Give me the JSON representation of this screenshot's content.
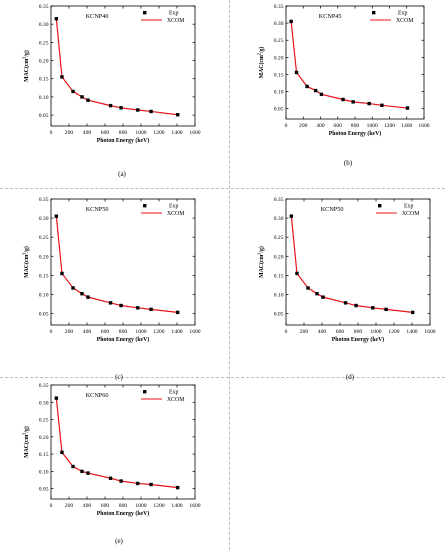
{
  "common": {
    "xlabel": "Photon Energy (keV)",
    "ylabel_parts": [
      "MAC(cm",
      "2",
      "/g)"
    ],
    "xlim": [
      0,
      1600
    ],
    "ylim": [
      0.02,
      0.35
    ],
    "xticks": [
      "0",
      "200",
      "400",
      "600",
      "800",
      "1000",
      "1200",
      "1400",
      "1600"
    ],
    "yticks": [
      "0.05",
      "0.10",
      "0.15",
      "0.20",
      "0.25",
      "0.30",
      "0.35"
    ],
    "legend": {
      "exp": "Exp",
      "xcom": "XCOM"
    },
    "colors": {
      "exp": "#000000",
      "xcom": "#e8141a"
    }
  },
  "chart_data": [
    {
      "panel": "(a)",
      "type": "scatter",
      "title": "KCNP40",
      "x": [
        59.5,
        121.8,
        244.7,
        344.3,
        411.1,
        661.7,
        778.9,
        964.1,
        1112.1,
        1408.0
      ],
      "exp": [
        0.315,
        0.155,
        0.115,
        0.1,
        0.091,
        0.076,
        0.07,
        0.064,
        0.06,
        0.051
      ],
      "xcom": [
        0.315,
        0.155,
        0.115,
        0.1,
        0.091,
        0.076,
        0.07,
        0.064,
        0.06,
        0.051
      ]
    },
    {
      "panel": "(b)",
      "type": "scatter",
      "title": "KCNP45",
      "x": [
        59.5,
        121.8,
        244.7,
        344.3,
        411.1,
        661.7,
        778.9,
        964.1,
        1112.1,
        1408.0
      ],
      "exp": [
        0.305,
        0.156,
        0.115,
        0.103,
        0.092,
        0.077,
        0.07,
        0.065,
        0.06,
        0.052
      ],
      "xcom": [
        0.305,
        0.156,
        0.115,
        0.103,
        0.092,
        0.077,
        0.07,
        0.065,
        0.06,
        0.052
      ]
    },
    {
      "panel": "(c)",
      "type": "scatter",
      "title": "KCNP50",
      "x": [
        59.5,
        121.8,
        244.7,
        344.3,
        411.1,
        661.7,
        778.9,
        964.1,
        1112.1,
        1408.0
      ],
      "exp": [
        0.305,
        0.155,
        0.117,
        0.102,
        0.093,
        0.078,
        0.071,
        0.065,
        0.061,
        0.053
      ],
      "xcom": [
        0.305,
        0.155,
        0.117,
        0.102,
        0.093,
        0.078,
        0.071,
        0.065,
        0.061,
        0.053
      ]
    },
    {
      "panel": "(d)",
      "type": "scatter",
      "title": "KCNP50",
      "x": [
        59.5,
        121.8,
        244.7,
        344.3,
        411.1,
        661.7,
        778.9,
        964.1,
        1112.1,
        1408.0
      ],
      "exp": [
        0.305,
        0.155,
        0.117,
        0.102,
        0.093,
        0.078,
        0.071,
        0.065,
        0.061,
        0.053
      ],
      "xcom": [
        0.305,
        0.155,
        0.117,
        0.102,
        0.093,
        0.078,
        0.071,
        0.065,
        0.061,
        0.053
      ]
    },
    {
      "panel": "(e)",
      "type": "scatter",
      "title": "KCNP60",
      "x": [
        59.5,
        121.8,
        244.7,
        344.3,
        411.1,
        661.7,
        778.9,
        964.1,
        1112.1,
        1408.0
      ],
      "exp": [
        0.312,
        0.155,
        0.114,
        0.1,
        0.095,
        0.08,
        0.072,
        0.065,
        0.062,
        0.053
      ],
      "xcom": [
        0.312,
        0.155,
        0.114,
        0.1,
        0.095,
        0.08,
        0.072,
        0.065,
        0.062,
        0.053
      ]
    }
  ]
}
